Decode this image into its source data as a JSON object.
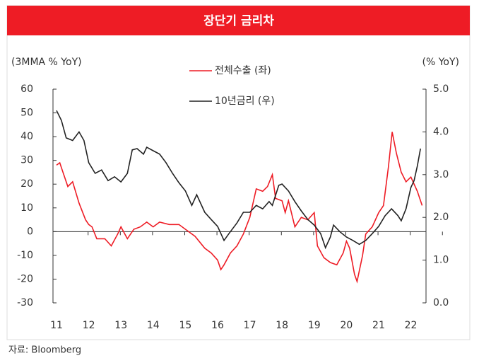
{
  "chart_data": {
    "type": "line",
    "title": "장단기 금리차",
    "y_label": "(3MMA % YoY)",
    "y2_label": "(% YoY)",
    "source": "자료: Bloomberg",
    "xlim": [
      10.89,
      22.47
    ],
    "xticks": [
      11,
      12,
      13,
      14,
      15,
      16,
      17,
      18,
      19,
      20,
      21,
      22
    ],
    "ylim": [
      -30,
      60
    ],
    "yticks": [
      -30,
      -20,
      -10,
      0,
      10,
      20,
      30,
      40,
      50,
      60
    ],
    "y2lim": [
      0,
      5
    ],
    "y2ticks": [
      {
        "value": 0,
        "label": "0.0"
      },
      {
        "value": 1,
        "label": "1.0"
      },
      {
        "value": 2,
        "label": "2.0"
      },
      {
        "value": 3,
        "label": "3.0"
      },
      {
        "value": 4,
        "label": "4.0"
      },
      {
        "value": 5,
        "label": "5.0"
      }
    ],
    "series": [
      {
        "name": "전체수출 (좌)",
        "color": "#ee1c25",
        "axis": "y",
        "x": [
          11.0,
          11.1,
          11.2,
          11.35,
          11.5,
          11.7,
          11.9,
          12.0,
          12.1,
          12.25,
          12.5,
          12.7,
          12.9,
          13.0,
          13.2,
          13.4,
          13.6,
          13.8,
          14.0,
          14.2,
          14.5,
          14.8,
          15.0,
          15.3,
          15.6,
          15.8,
          16.0,
          16.1,
          16.2,
          16.4,
          16.6,
          16.8,
          17.0,
          17.2,
          17.4,
          17.55,
          17.7,
          17.8,
          18.0,
          18.1,
          18.2,
          18.4,
          18.6,
          18.8,
          19.0,
          19.1,
          19.3,
          19.5,
          19.7,
          19.9,
          20.0,
          20.1,
          20.25,
          20.33,
          20.5,
          20.6,
          20.8,
          21.0,
          21.15,
          21.3,
          21.42,
          21.55,
          21.7,
          21.85,
          22.0,
          22.2,
          22.35
        ],
        "values": [
          28,
          29,
          25,
          19,
          21,
          12,
          5,
          3,
          2,
          -3,
          -3,
          -6,
          -1,
          2,
          -3,
          1,
          2,
          4,
          2,
          4,
          3,
          3,
          1,
          -2,
          -7,
          -9,
          -12,
          -16,
          -14,
          -9,
          -6,
          -1,
          6,
          18,
          17,
          19,
          24,
          14,
          13,
          8,
          13,
          2,
          6,
          5,
          8,
          -6,
          -11,
          -13,
          -14,
          -9,
          -4,
          -7,
          -18,
          -21,
          -10,
          -1,
          2,
          8,
          11,
          27,
          42,
          33,
          25,
          21,
          23,
          17,
          11
        ]
      },
      {
        "name": "10년금리 (우)",
        "color": "#222222",
        "axis": "y2",
        "x": [
          11.0,
          11.15,
          11.3,
          11.5,
          11.7,
          11.85,
          12.0,
          12.2,
          12.4,
          12.6,
          12.8,
          13.0,
          13.2,
          13.35,
          13.5,
          13.7,
          13.8,
          14.0,
          14.2,
          14.4,
          14.6,
          14.8,
          15.0,
          15.2,
          15.35,
          15.6,
          15.8,
          16.0,
          16.2,
          16.35,
          16.6,
          16.8,
          17.0,
          17.2,
          17.4,
          17.6,
          17.7,
          17.9,
          18.0,
          18.2,
          18.4,
          18.6,
          18.8,
          19.0,
          19.2,
          19.35,
          19.5,
          19.6,
          19.8,
          20.0,
          20.2,
          20.4,
          20.6,
          20.8,
          21.0,
          21.2,
          21.4,
          21.6,
          21.7,
          21.85,
          22.0,
          22.1,
          22.2,
          22.3
        ],
        "values": [
          4.5,
          4.27,
          3.86,
          3.8,
          4.0,
          3.8,
          3.28,
          3.03,
          3.11,
          2.86,
          2.95,
          2.83,
          3.03,
          3.58,
          3.61,
          3.48,
          3.64,
          3.56,
          3.48,
          3.28,
          3.03,
          2.81,
          2.62,
          2.28,
          2.53,
          2.12,
          1.95,
          1.79,
          1.46,
          1.62,
          1.87,
          2.12,
          2.12,
          2.28,
          2.2,
          2.37,
          2.28,
          2.75,
          2.78,
          2.62,
          2.37,
          2.15,
          1.95,
          1.82,
          1.62,
          1.29,
          1.54,
          1.82,
          1.66,
          1.54,
          1.46,
          1.37,
          1.46,
          1.62,
          1.79,
          2.04,
          2.2,
          2.04,
          1.92,
          2.2,
          2.7,
          2.86,
          3.2,
          3.61
        ]
      }
    ]
  }
}
